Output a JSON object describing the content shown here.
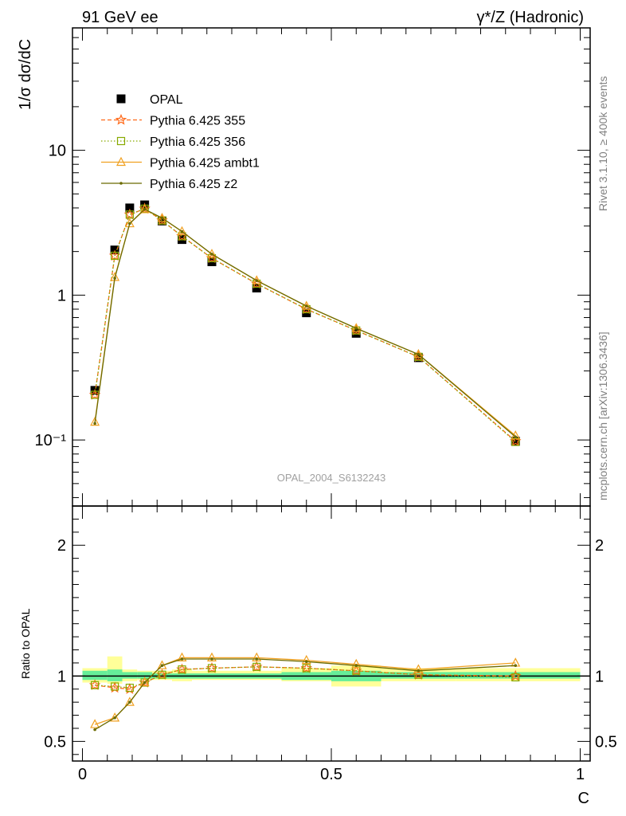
{
  "header": {
    "left": "91 GeV ee",
    "right": "γ*/Z (Hadronic)"
  },
  "side": {
    "rivet": "Rivet 3.1.10, ≥ 400k events",
    "mcplots": "mcplots.cern.ch [arXiv:1306.3436]"
  },
  "watermark": "OPAL_2004_S6132243",
  "chart_data": [
    {
      "type": "line",
      "panel": "main",
      "ylabel": "1/σ dσ/dC",
      "yscale": "log",
      "ylim": [
        0.035,
        70
      ],
      "xlim": [
        -0.02,
        1.02
      ],
      "ytick_labels": [
        "10⁻¹",
        "1",
        "10"
      ],
      "x": [
        0.025,
        0.065,
        0.095,
        0.125,
        0.16,
        0.2,
        0.26,
        0.35,
        0.45,
        0.55,
        0.675,
        0.87
      ],
      "xerr_bins": [
        [
          0.0,
          0.05
        ],
        [
          0.05,
          0.08
        ],
        [
          0.08,
          0.11
        ],
        [
          0.11,
          0.14
        ],
        [
          0.14,
          0.18
        ],
        [
          0.18,
          0.22
        ],
        [
          0.22,
          0.3
        ],
        [
          0.3,
          0.4
        ],
        [
          0.4,
          0.5
        ],
        [
          0.5,
          0.6
        ],
        [
          0.6,
          0.75
        ],
        [
          0.75,
          1.0
        ]
      ],
      "series": [
        {
          "name": "OPAL",
          "color": "#000000",
          "marker": "square-filled",
          "values": [
            0.22,
            2.05,
            4.0,
            4.2,
            3.25,
            2.42,
            1.7,
            1.12,
            0.755,
            0.545,
            0.37,
            0.098
          ]
        },
        {
          "name": "Pythia 6.425 355",
          "color": "#ff6a1a",
          "marker": "star",
          "dash": "dashed",
          "values": [
            0.205,
            1.87,
            3.6,
            3.95,
            3.28,
            2.55,
            1.8,
            1.2,
            0.8,
            0.57,
            0.375,
            0.098
          ]
        },
        {
          "name": "Pythia 6.425 356",
          "color": "#88aa00",
          "marker": "square-open",
          "dash": "dotted",
          "values": [
            0.205,
            1.87,
            3.6,
            3.95,
            3.28,
            2.55,
            1.8,
            1.2,
            0.8,
            0.57,
            0.375,
            0.097
          ]
        },
        {
          "name": "Pythia 6.425 ambt1",
          "color": "#f0a020",
          "marker": "triangle-open",
          "dash": "solid",
          "values": [
            0.133,
            1.33,
            3.12,
            3.9,
            3.4,
            2.75,
            1.92,
            1.26,
            0.84,
            0.59,
            0.39,
            0.107
          ]
        },
        {
          "name": "Pythia 6.425 z2",
          "color": "#6b6b00",
          "marker": "dot",
          "dash": "solid",
          "values": [
            0.13,
            1.31,
            3.12,
            3.92,
            3.41,
            2.75,
            1.92,
            1.26,
            0.84,
            0.59,
            0.39,
            0.105
          ]
        }
      ],
      "legend_position": "top-left"
    },
    {
      "type": "line",
      "panel": "ratio",
      "xlabel": "C",
      "ylabel": "Ratio to OPAL",
      "ylim": [
        0.35,
        2.3
      ],
      "yticks": [
        0.5,
        1,
        2
      ],
      "ytick_labels": [
        "0.5",
        "1",
        "2"
      ],
      "xticks": [
        0,
        0.5,
        1
      ],
      "xtick_labels": [
        "0",
        "0.5",
        "1"
      ],
      "reference_line": 1,
      "band_outer": [
        [
          0.0,
          0.05,
          0.95,
          1.06
        ],
        [
          0.05,
          0.08,
          0.94,
          1.15
        ],
        [
          0.08,
          0.11,
          0.96,
          1.05
        ],
        [
          0.11,
          0.14,
          0.97,
          1.04
        ],
        [
          0.14,
          0.18,
          0.97,
          1.04
        ],
        [
          0.18,
          0.22,
          0.96,
          1.05
        ],
        [
          0.22,
          0.3,
          0.97,
          1.04
        ],
        [
          0.3,
          0.4,
          0.97,
          1.04
        ],
        [
          0.4,
          0.5,
          0.96,
          1.06
        ],
        [
          0.5,
          0.6,
          0.92,
          1.08
        ],
        [
          0.6,
          0.75,
          0.96,
          1.06
        ],
        [
          0.75,
          1.0,
          0.96,
          1.06
        ]
      ],
      "band_inner": [
        [
          0.0,
          0.05,
          0.97,
          1.04
        ],
        [
          0.05,
          0.08,
          0.96,
          1.05
        ],
        [
          0.08,
          0.11,
          0.98,
          1.03
        ],
        [
          0.11,
          0.14,
          0.98,
          1.03
        ],
        [
          0.14,
          0.18,
          0.98,
          1.02
        ],
        [
          0.18,
          0.22,
          0.98,
          1.02
        ],
        [
          0.22,
          0.3,
          0.98,
          1.02
        ],
        [
          0.3,
          0.4,
          0.98,
          1.02
        ],
        [
          0.4,
          0.5,
          0.97,
          1.03
        ],
        [
          0.5,
          0.6,
          0.96,
          1.04
        ],
        [
          0.6,
          0.75,
          0.98,
          1.03
        ],
        [
          0.75,
          1.0,
          0.98,
          1.03
        ]
      ],
      "series": [
        {
          "name": "Pythia 6.425 355",
          "color": "#ff6a1a",
          "values": [
            0.93,
            0.91,
            0.9,
            0.95,
            1.01,
            1.05,
            1.06,
            1.07,
            1.06,
            1.04,
            1.01,
            1.0
          ]
        },
        {
          "name": "Pythia 6.425 356",
          "color": "#88aa00",
          "values": [
            0.93,
            0.92,
            0.91,
            0.95,
            1.01,
            1.05,
            1.06,
            1.07,
            1.06,
            1.04,
            1.01,
            0.99
          ]
        },
        {
          "name": "Pythia 6.425 ambt1",
          "color": "#f0a020",
          "values": [
            0.63,
            0.68,
            0.8,
            0.95,
            1.08,
            1.14,
            1.14,
            1.14,
            1.12,
            1.09,
            1.05,
            1.1
          ]
        },
        {
          "name": "Pythia 6.425 z2",
          "color": "#6b6b00",
          "values": [
            0.59,
            0.68,
            0.8,
            0.95,
            1.08,
            1.13,
            1.13,
            1.13,
            1.11,
            1.08,
            1.04,
            1.08
          ]
        }
      ]
    }
  ]
}
